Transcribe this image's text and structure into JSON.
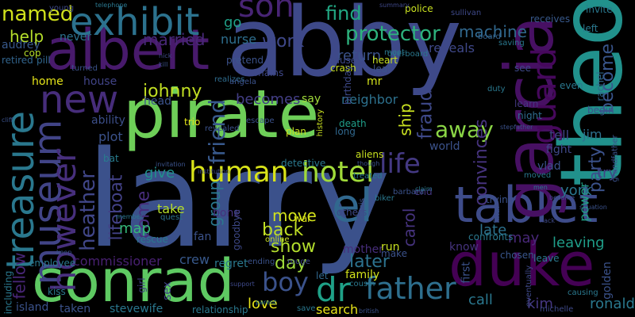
{
  "words": [
    {
      "text": "larry",
      "color": "#3b518b"
    },
    {
      "text": "abby",
      "color": "#3e4989"
    },
    {
      "text": "pirate",
      "color": "#6ece58"
    },
    {
      "text": "albert",
      "color": "#481a6c"
    },
    {
      "text": "conrad",
      "color": "#5ec962"
    },
    {
      "text": "theo",
      "color": "#21918c"
    },
    {
      "text": "tablet",
      "color": "#3e4c8a"
    },
    {
      "text": "duke",
      "color": "#440154"
    },
    {
      "text": "garcia",
      "color": "#471063"
    },
    {
      "text": "treasure",
      "color": "#2a788e"
    },
    {
      "text": "museum",
      "color": "#414487"
    },
    {
      "text": "new",
      "color": "#472d7b"
    },
    {
      "text": "exhibit",
      "color": "#2c728e"
    },
    {
      "text": "son",
      "color": "#482475"
    },
    {
      "text": "human",
      "color": "#d8e219"
    },
    {
      "text": "hotel",
      "color": "#a0da39"
    },
    {
      "text": "life",
      "color": "#443983"
    },
    {
      "text": "el",
      "color": "#31688e"
    },
    {
      "text": "however",
      "color": "#472f7d"
    },
    {
      "text": "guard",
      "color": "#46085c"
    },
    {
      "text": "father",
      "color": "#2e6f8e"
    },
    {
      "text": "dr",
      "color": "#1fa187"
    },
    {
      "text": "boy",
      "color": "#3b528b"
    },
    {
      "text": "heather",
      "color": "#404688"
    },
    {
      "text": "protector",
      "color": "#2db27d"
    },
    {
      "text": "machine",
      "color": "#31688e"
    },
    {
      "text": "party",
      "color": "#3b528b"
    },
    {
      "text": "power",
      "color": "#20a386"
    },
    {
      "text": "become",
      "color": "#39558c"
    },
    {
      "text": "away",
      "color": "#8bd646"
    },
    {
      "text": "friend",
      "color": "#38598c"
    },
    {
      "text": "johnny",
      "color": "#c2df23"
    },
    {
      "text": "named",
      "color": "#d0e11c"
    },
    {
      "text": "help",
      "color": "#b5de2b"
    },
    {
      "text": "married",
      "color": "#482878"
    },
    {
      "text": "find",
      "color": "#22a884"
    },
    {
      "text": "work",
      "color": "#3f4889"
    },
    {
      "text": "go",
      "color": "#1fa088"
    },
    {
      "text": "nurse",
      "color": "#2e6e8e"
    },
    {
      "text": "return",
      "color": "#3b528b"
    },
    {
      "text": "reveals",
      "color": "#3f4889"
    },
    {
      "text": "fraud",
      "color": "#3e4989"
    },
    {
      "text": "ship",
      "color": "#c8e020"
    },
    {
      "text": "convinces",
      "color": "#46337e"
    },
    {
      "text": "lifeboat",
      "color": "#424186"
    },
    {
      "text": "plot",
      "color": "#3b528b"
    },
    {
      "text": "give",
      "color": "#21908d"
    },
    {
      "text": "come",
      "color": "#472d7b"
    },
    {
      "text": "group",
      "color": "#2a788e"
    },
    {
      "text": "map",
      "color": "#35b779"
    },
    {
      "text": "move",
      "color": "#d2e21b"
    },
    {
      "text": "back",
      "color": "#c0df25"
    },
    {
      "text": "show",
      "color": "#b2dd2d"
    },
    {
      "text": "day",
      "color": "#9fda3a"
    },
    {
      "text": "later",
      "color": "#2c728e"
    },
    {
      "text": "carol",
      "color": "#46337e"
    },
    {
      "text": "late",
      "color": "#2c728e"
    },
    {
      "text": "york",
      "color": "#2a768e"
    },
    {
      "text": "try",
      "color": "#414487"
    },
    {
      "text": "leaving",
      "color": "#1f9e89"
    },
    {
      "text": "ronald",
      "color": "#2a788e"
    },
    {
      "text": "kim",
      "color": "#453781"
    },
    {
      "text": "call",
      "color": "#2a778e"
    },
    {
      "text": "may",
      "color": "#482878"
    },
    {
      "text": "fellow",
      "color": "#482677"
    },
    {
      "text": "love",
      "color": "#e5e419"
    },
    {
      "text": "search",
      "color": "#e7e419"
    },
    {
      "text": "family",
      "color": "#d2e21b"
    },
    {
      "text": "commissioner",
      "color": "#482071"
    },
    {
      "text": "crew",
      "color": "#38598c"
    },
    {
      "text": "take",
      "color": "#b5de2b"
    },
    {
      "text": "fan",
      "color": "#3b528b"
    },
    {
      "text": "bone",
      "color": "#46337e"
    },
    {
      "text": "becomes",
      "color": "#433e85"
    },
    {
      "text": "say",
      "color": "#a0da39"
    },
    {
      "text": "neighbor",
      "color": "#2d718e"
    },
    {
      "text": "ability",
      "color": "#3c4f8a"
    },
    {
      "text": "home",
      "color": "#e5e419"
    },
    {
      "text": "house",
      "color": "#414487"
    },
    {
      "text": "head",
      "color": "#3b528b"
    },
    {
      "text": "never",
      "color": "#2c728e"
    },
    {
      "text": "audrey",
      "color": "#38598c"
    },
    {
      "text": "retired",
      "color": "#32658e"
    },
    {
      "text": "young",
      "color": "#3e4a89"
    },
    {
      "text": "pill",
      "color": "#31688e"
    },
    {
      "text": "cop",
      "color": "#b5de2b"
    },
    {
      "text": "bat",
      "color": "#287d8e"
    },
    {
      "text": "quest",
      "color": "#2c728e"
    },
    {
      "text": "rescue",
      "color": "#2a788e"
    },
    {
      "text": "goodbye",
      "color": "#3e4989"
    },
    {
      "text": "war",
      "color": "#d8e219"
    },
    {
      "text": "others",
      "color": "#3e4989"
    },
    {
      "text": "mother",
      "color": "#472d7b"
    },
    {
      "text": "know",
      "color": "#46337e"
    },
    {
      "text": "first",
      "color": "#3b528b"
    },
    {
      "text": "golden",
      "color": "#3b528b"
    },
    {
      "text": "chosen",
      "color": "#39568c"
    },
    {
      "text": "relationship",
      "color": "#2a788e"
    },
    {
      "text": "island",
      "color": "#3b528b"
    },
    {
      "text": "taken",
      "color": "#3b528b"
    },
    {
      "text": "stevewife",
      "color": "#2a778e"
    },
    {
      "text": "kiss",
      "color": "#2a788e"
    },
    {
      "text": "employee",
      "color": "#2a788e"
    },
    {
      "text": "including",
      "color": "#2a788e"
    },
    {
      "text": "sex",
      "color": "#404588"
    },
    {
      "text": "girl",
      "color": "#433e85"
    },
    {
      "text": "let",
      "color": "#31688e"
    },
    {
      "text": "death",
      "color": "#1f9e89"
    },
    {
      "text": "history",
      "color": "#c8e020"
    },
    {
      "text": "long",
      "color": "#31688e"
    },
    {
      "text": "world",
      "color": "#3b528b"
    },
    {
      "text": "end",
      "color": "#453781"
    },
    {
      "text": "tell",
      "color": "#414487"
    },
    {
      "text": "jim",
      "color": "#2d718e"
    },
    {
      "text": "fight",
      "color": "#3f4889"
    },
    {
      "text": "vlad",
      "color": "#3b528b"
    },
    {
      "text": "learn",
      "color": "#453781"
    },
    {
      "text": "night",
      "color": "#2f6c8e"
    },
    {
      "text": "begin",
      "color": "#3b528b"
    },
    {
      "text": "see",
      "color": "#3e4989"
    },
    {
      "text": "even",
      "color": "#2a788e"
    },
    {
      "text": "left",
      "color": "#2a788e"
    },
    {
      "text": "rachel",
      "color": "#31688e"
    },
    {
      "text": "invite",
      "color": "#2a788e"
    },
    {
      "text": "receives",
      "color": "#38598c"
    },
    {
      "text": "saving",
      "color": "#2a788e"
    },
    {
      "text": "board",
      "color": "#33628d"
    },
    {
      "text": "sullivan",
      "color": "#3e4989"
    },
    {
      "text": "police",
      "color": "#c8e020"
    },
    {
      "text": "summary",
      "color": "#3f4889"
    },
    {
      "text": "telephone",
      "color": "#2a778e"
    },
    {
      "text": "pretend",
      "color": "#3b528b"
    },
    {
      "text": "realizes",
      "color": "#2f6c8e"
    },
    {
      "text": "remains",
      "color": "#3f4889"
    },
    {
      "text": "nick",
      "color": "#3e4989"
    },
    {
      "text": "kill",
      "color": "#3b528b"
    },
    {
      "text": "angela",
      "color": "#3b528b"
    },
    {
      "text": "cause",
      "color": "#3e4989"
    },
    {
      "text": "crash",
      "color": "#c8e020"
    },
    {
      "text": "meet",
      "color": "#2a778e"
    },
    {
      "text": "heart",
      "color": "#c8e020"
    },
    {
      "text": "leaf",
      "color": "#3b528b"
    },
    {
      "text": "mr",
      "color": "#d2e21b"
    },
    {
      "text": "birthday",
      "color": "#3e4989"
    },
    {
      "text": "overboard",
      "color": "#2a788e"
    },
    {
      "text": "turned",
      "color": "#3b528b"
    },
    {
      "text": "trio",
      "color": "#e5e419"
    },
    {
      "text": "escape",
      "color": "#3b528b"
    },
    {
      "text": "plan",
      "color": "#c8e020"
    },
    {
      "text": "revealed",
      "color": "#3b528b"
    },
    {
      "text": "invitation",
      "color": "#3b528b"
    },
    {
      "text": "institution",
      "color": "#3e4989"
    },
    {
      "text": "detective",
      "color": "#2a788e"
    },
    {
      "text": "aliens",
      "color": "#c8e020"
    },
    {
      "text": "though",
      "color": "#3b528b"
    },
    {
      "text": "treated",
      "color": "#2a788e"
    },
    {
      "text": "barbara",
      "color": "#3b528b"
    },
    {
      "text": "claim",
      "color": "#2a778e"
    },
    {
      "text": "trying",
      "color": "#3b528b"
    },
    {
      "text": "moved",
      "color": "#2a788e"
    },
    {
      "text": "stepfather",
      "color": "#3b528b"
    },
    {
      "text": "duty",
      "color": "#2a788e"
    },
    {
      "text": "grandfather",
      "color": "#3b528b"
    },
    {
      "text": "men",
      "color": "#2a788e"
    },
    {
      "text": "became",
      "color": "#3e4989"
    },
    {
      "text": "situation",
      "color": "#3b528b"
    },
    {
      "text": "confronts",
      "color": "#2a788e"
    },
    {
      "text": "hack",
      "color": "#3e4989"
    },
    {
      "text": "leave",
      "color": "#2a788e"
    },
    {
      "text": "final",
      "color": "#3b528b"
    },
    {
      "text": "eventually",
      "color": "#3e4989"
    },
    {
      "text": "causing",
      "color": "#2a788e"
    },
    {
      "text": "michelle",
      "color": "#3e4989"
    },
    {
      "text": "make",
      "color": "#3b528b"
    },
    {
      "text": "run",
      "color": "#c8e020"
    },
    {
      "text": "biker",
      "color": "#2a788e"
    },
    {
      "text": "morris",
      "color": "#3b528b"
    },
    {
      "text": "online",
      "color": "#c8e020"
    },
    {
      "text": "cousin",
      "color": "#2a788e"
    },
    {
      "text": "rouge",
      "color": "#3e4989"
    },
    {
      "text": "ending",
      "color": "#3b528b"
    },
    {
      "text": "save",
      "color": "#2a788e"
    },
    {
      "text": "british",
      "color": "#3b528b"
    },
    {
      "text": "parent",
      "color": "#2a788e"
    },
    {
      "text": "support",
      "color": "#3e4989"
    },
    {
      "text": "keep",
      "color": "#3b528b"
    },
    {
      "text": "member",
      "color": "#2a788e"
    },
    {
      "text": "cliff",
      "color": "#3b528b"
    },
    {
      "text": "regret",
      "color": "#2a788e"
    }
  ]
}
